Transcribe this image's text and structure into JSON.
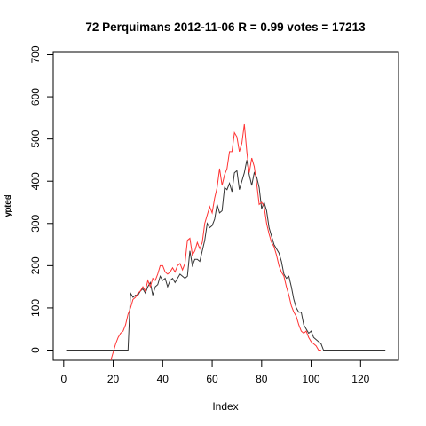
{
  "chart_data": {
    "type": "line",
    "title": "72 Perquimans 2012-11-06 R = 0.99 votes = 17213",
    "xlabel": "Index",
    "ylabel_overlap": [
      "votes",
      "ypred"
    ],
    "xlim": [
      1,
      130
    ],
    "ylim": [
      0,
      700
    ],
    "xticks": [
      0,
      20,
      40,
      60,
      80,
      100,
      120
    ],
    "yticks": [
      0,
      100,
      200,
      300,
      400,
      500,
      600,
      700
    ],
    "series": [
      {
        "color": "#333333",
        "x": [
          1,
          2,
          3,
          4,
          5,
          6,
          7,
          8,
          9,
          10,
          11,
          12,
          13,
          14,
          15,
          16,
          17,
          18,
          19,
          20,
          21,
          22,
          23,
          24,
          25,
          26,
          27,
          28,
          29,
          30,
          31,
          32,
          33,
          34,
          35,
          36,
          37,
          38,
          39,
          40,
          41,
          42,
          43,
          44,
          45,
          46,
          47,
          48,
          49,
          50,
          51,
          52,
          53,
          54,
          55,
          56,
          57,
          58,
          59,
          60,
          61,
          62,
          63,
          64,
          65,
          66,
          67,
          68,
          69,
          70,
          71,
          72,
          73,
          74,
          75,
          76,
          77,
          78,
          79,
          80,
          81,
          82,
          83,
          84,
          85,
          86,
          87,
          88,
          89,
          90,
          91,
          92,
          93,
          94,
          95,
          96,
          97,
          98,
          99,
          100,
          101,
          102,
          103,
          104,
          105,
          106,
          107,
          108,
          109,
          110,
          111,
          112,
          113,
          114,
          115,
          116,
          117,
          118,
          119,
          120,
          121,
          122,
          123,
          124,
          125,
          126,
          127,
          128,
          129,
          130
        ],
        "values": [
          0,
          0,
          0,
          0,
          0,
          0,
          0,
          0,
          0,
          0,
          0,
          0,
          0,
          0,
          0,
          0,
          0,
          0,
          0,
          0,
          0,
          0,
          0,
          0,
          0,
          0,
          135,
          125,
          130,
          130,
          140,
          145,
          135,
          150,
          160,
          130,
          150,
          155,
          175,
          165,
          170,
          150,
          165,
          170,
          160,
          170,
          180,
          175,
          170,
          175,
          235,
          200,
          215,
          215,
          210,
          235,
          260,
          300,
          290,
          295,
          310,
          345,
          325,
          330,
          385,
          380,
          395,
          375,
          420,
          425,
          380,
          400,
          420,
          450,
          415,
          390,
          420,
          410,
          385,
          335,
          350,
          330,
          290,
          270,
          250,
          240,
          230,
          210,
          180,
          170,
          175,
          150,
          120,
          100,
          90,
          90,
          60,
          50,
          40,
          45,
          30,
          25,
          20,
          15,
          0,
          0,
          0,
          0,
          0,
          0,
          0,
          0,
          0,
          0,
          0,
          0,
          0,
          0,
          0,
          0,
          0,
          0,
          0,
          0,
          0,
          0,
          0,
          0,
          0,
          0
        ]
      },
      {
        "color": "#ff3333",
        "x": [
          19,
          20,
          21,
          22,
          23,
          24,
          25,
          26,
          27,
          28,
          29,
          30,
          31,
          32,
          33,
          34,
          35,
          36,
          37,
          38,
          39,
          40,
          41,
          42,
          43,
          44,
          45,
          46,
          47,
          48,
          49,
          50,
          51,
          52,
          53,
          54,
          55,
          56,
          57,
          58,
          59,
          60,
          61,
          62,
          63,
          64,
          65,
          66,
          67,
          68,
          69,
          70,
          71,
          72,
          73,
          74,
          75,
          76,
          77,
          78,
          79,
          80,
          81,
          82,
          83,
          84,
          85,
          86,
          87,
          88,
          89,
          90,
          91,
          92,
          93,
          94,
          95,
          96,
          97,
          98,
          99,
          100,
          101,
          102,
          103,
          104
        ],
        "values": [
          -25,
          -5,
          15,
          30,
          40,
          45,
          60,
          85,
          100,
          120,
          125,
          135,
          140,
          150,
          140,
          165,
          150,
          170,
          165,
          180,
          200,
          200,
          185,
          180,
          185,
          195,
          185,
          200,
          205,
          190,
          205,
          260,
          265,
          225,
          235,
          255,
          240,
          255,
          300,
          320,
          340,
          325,
          360,
          385,
          430,
          390,
          415,
          430,
          470,
          470,
          515,
          505,
          470,
          490,
          535,
          470,
          420,
          455,
          435,
          395,
          345,
          350,
          340,
          300,
          275,
          255,
          245,
          225,
          200,
          185,
          175,
          150,
          130,
          105,
          90,
          80,
          60,
          45,
          40,
          45,
          30,
          20,
          15,
          10,
          0,
          0
        ]
      }
    ]
  }
}
